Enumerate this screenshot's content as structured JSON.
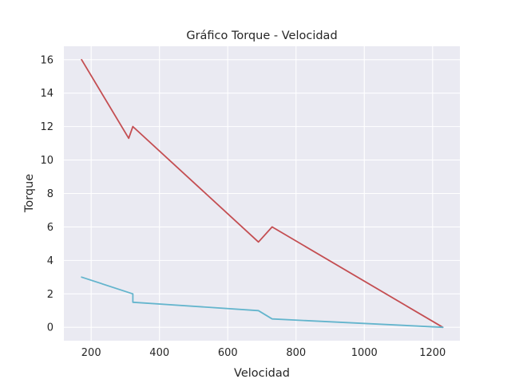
{
  "chart_data": {
    "type": "line",
    "title": "Gráfico Torque - Velocidad",
    "xlabel": "Velocidad",
    "ylabel": "Torque",
    "xlim": [
      120,
      1280
    ],
    "ylim": [
      -0.8,
      16.8
    ],
    "xticks": [
      200,
      400,
      600,
      800,
      1000,
      1200
    ],
    "yticks": [
      0,
      2,
      4,
      6,
      8,
      10,
      12,
      14,
      16
    ],
    "grid": true,
    "background": "#eaeaf2",
    "series": [
      {
        "color": "#c44e52",
        "points": [
          [
            172,
            16.0
          ],
          [
            310,
            11.3
          ],
          [
            322,
            12.0
          ],
          [
            690,
            5.1
          ],
          [
            730,
            6.0
          ],
          [
            1230,
            0.0
          ]
        ]
      },
      {
        "color": "#64b5cd",
        "points": [
          [
            172,
            3.0
          ],
          [
            322,
            2.0
          ],
          [
            322,
            1.5
          ],
          [
            690,
            1.0
          ],
          [
            730,
            0.5
          ],
          [
            1230,
            0.0
          ]
        ]
      }
    ]
  }
}
